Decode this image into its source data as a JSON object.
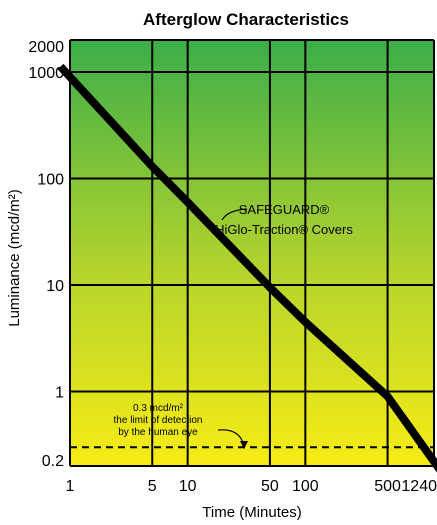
{
  "chart_data": {
    "type": "line",
    "title": "Afterglow Characteristics",
    "xlabel": "Time (Minutes)",
    "ylabel": "Luminance (mcd/m²)",
    "x_scale": "log",
    "y_scale": "log",
    "xlim": [
      1,
      1240
    ],
    "ylim": [
      0.2,
      2000
    ],
    "grid": true,
    "x_ticks": [
      1,
      5,
      10,
      50,
      100,
      500,
      1240
    ],
    "x_tick_labels": [
      "1",
      "5",
      "10",
      "50",
      "100",
      "500",
      "1240"
    ],
    "y_ticks": [
      0.2,
      1,
      10,
      100,
      1000,
      2000
    ],
    "y_tick_labels": [
      "0.2",
      "1",
      "10",
      "100",
      "1000",
      "2000"
    ],
    "background_gradient": [
      "#3cae49",
      "#f7ec14"
    ],
    "series": [
      {
        "name": "SAFEGUARD® HiGlo-Traction® Covers",
        "color": "#000000",
        "x": [
          1,
          5,
          10,
          50,
          100,
          500,
          1240
        ],
        "y": [
          900,
          130,
          60,
          9.5,
          4.5,
          0.9,
          0.22
        ]
      }
    ],
    "reference_line": {
      "value": 0.3,
      "style": "dashed",
      "label_lines": [
        "0.3 mcd/m²",
        "the limit of detection",
        "by the human eye"
      ]
    },
    "annotations": [
      {
        "text_lines": [
          "SAFEGUARD®",
          "HiGlo-Traction® Covers"
        ],
        "points_to_x": 40
      }
    ]
  }
}
